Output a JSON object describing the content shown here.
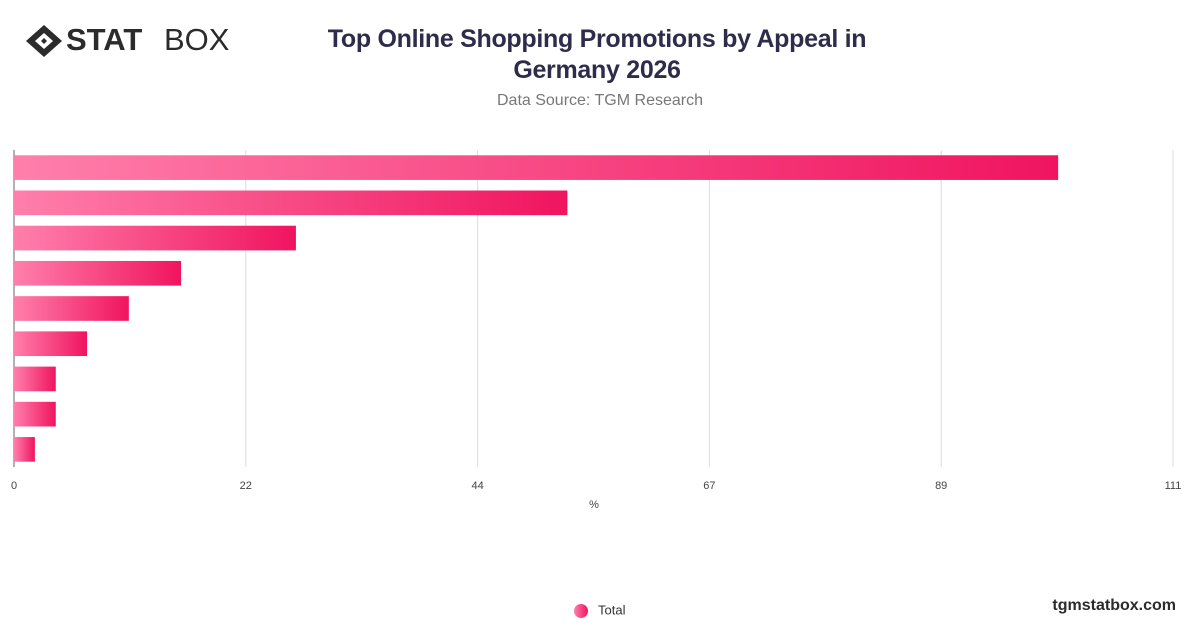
{
  "logo": {
    "bold": "STAT",
    "light": "BOX"
  },
  "footer": "tgmstatbox.com",
  "chart_data": {
    "type": "bar",
    "orientation": "horizontal",
    "title": "Top Online Shopping Promotions by Appeal in Germany 2026",
    "subtitle": "Data Source: TGM Research",
    "x_label": "%",
    "categories": [
      null,
      null,
      null,
      null,
      null,
      null,
      null,
      null,
      null
    ],
    "series": [
      {
        "name": "Total",
        "color": "#f0145f",
        "values": [
          100,
          53,
          27,
          16,
          11,
          7,
          4,
          4,
          2
        ]
      }
    ],
    "xlim": [
      0,
      111
    ],
    "xticks": [
      0,
      {
        "value": 22.2,
        "label": "22"
      },
      {
        "value": 44.4,
        "label": "44"
      },
      {
        "value": 66.6,
        "label": "67"
      },
      {
        "value": 88.8,
        "label": "89"
      },
      111
    ],
    "grid": true,
    "legend": "bottom"
  }
}
